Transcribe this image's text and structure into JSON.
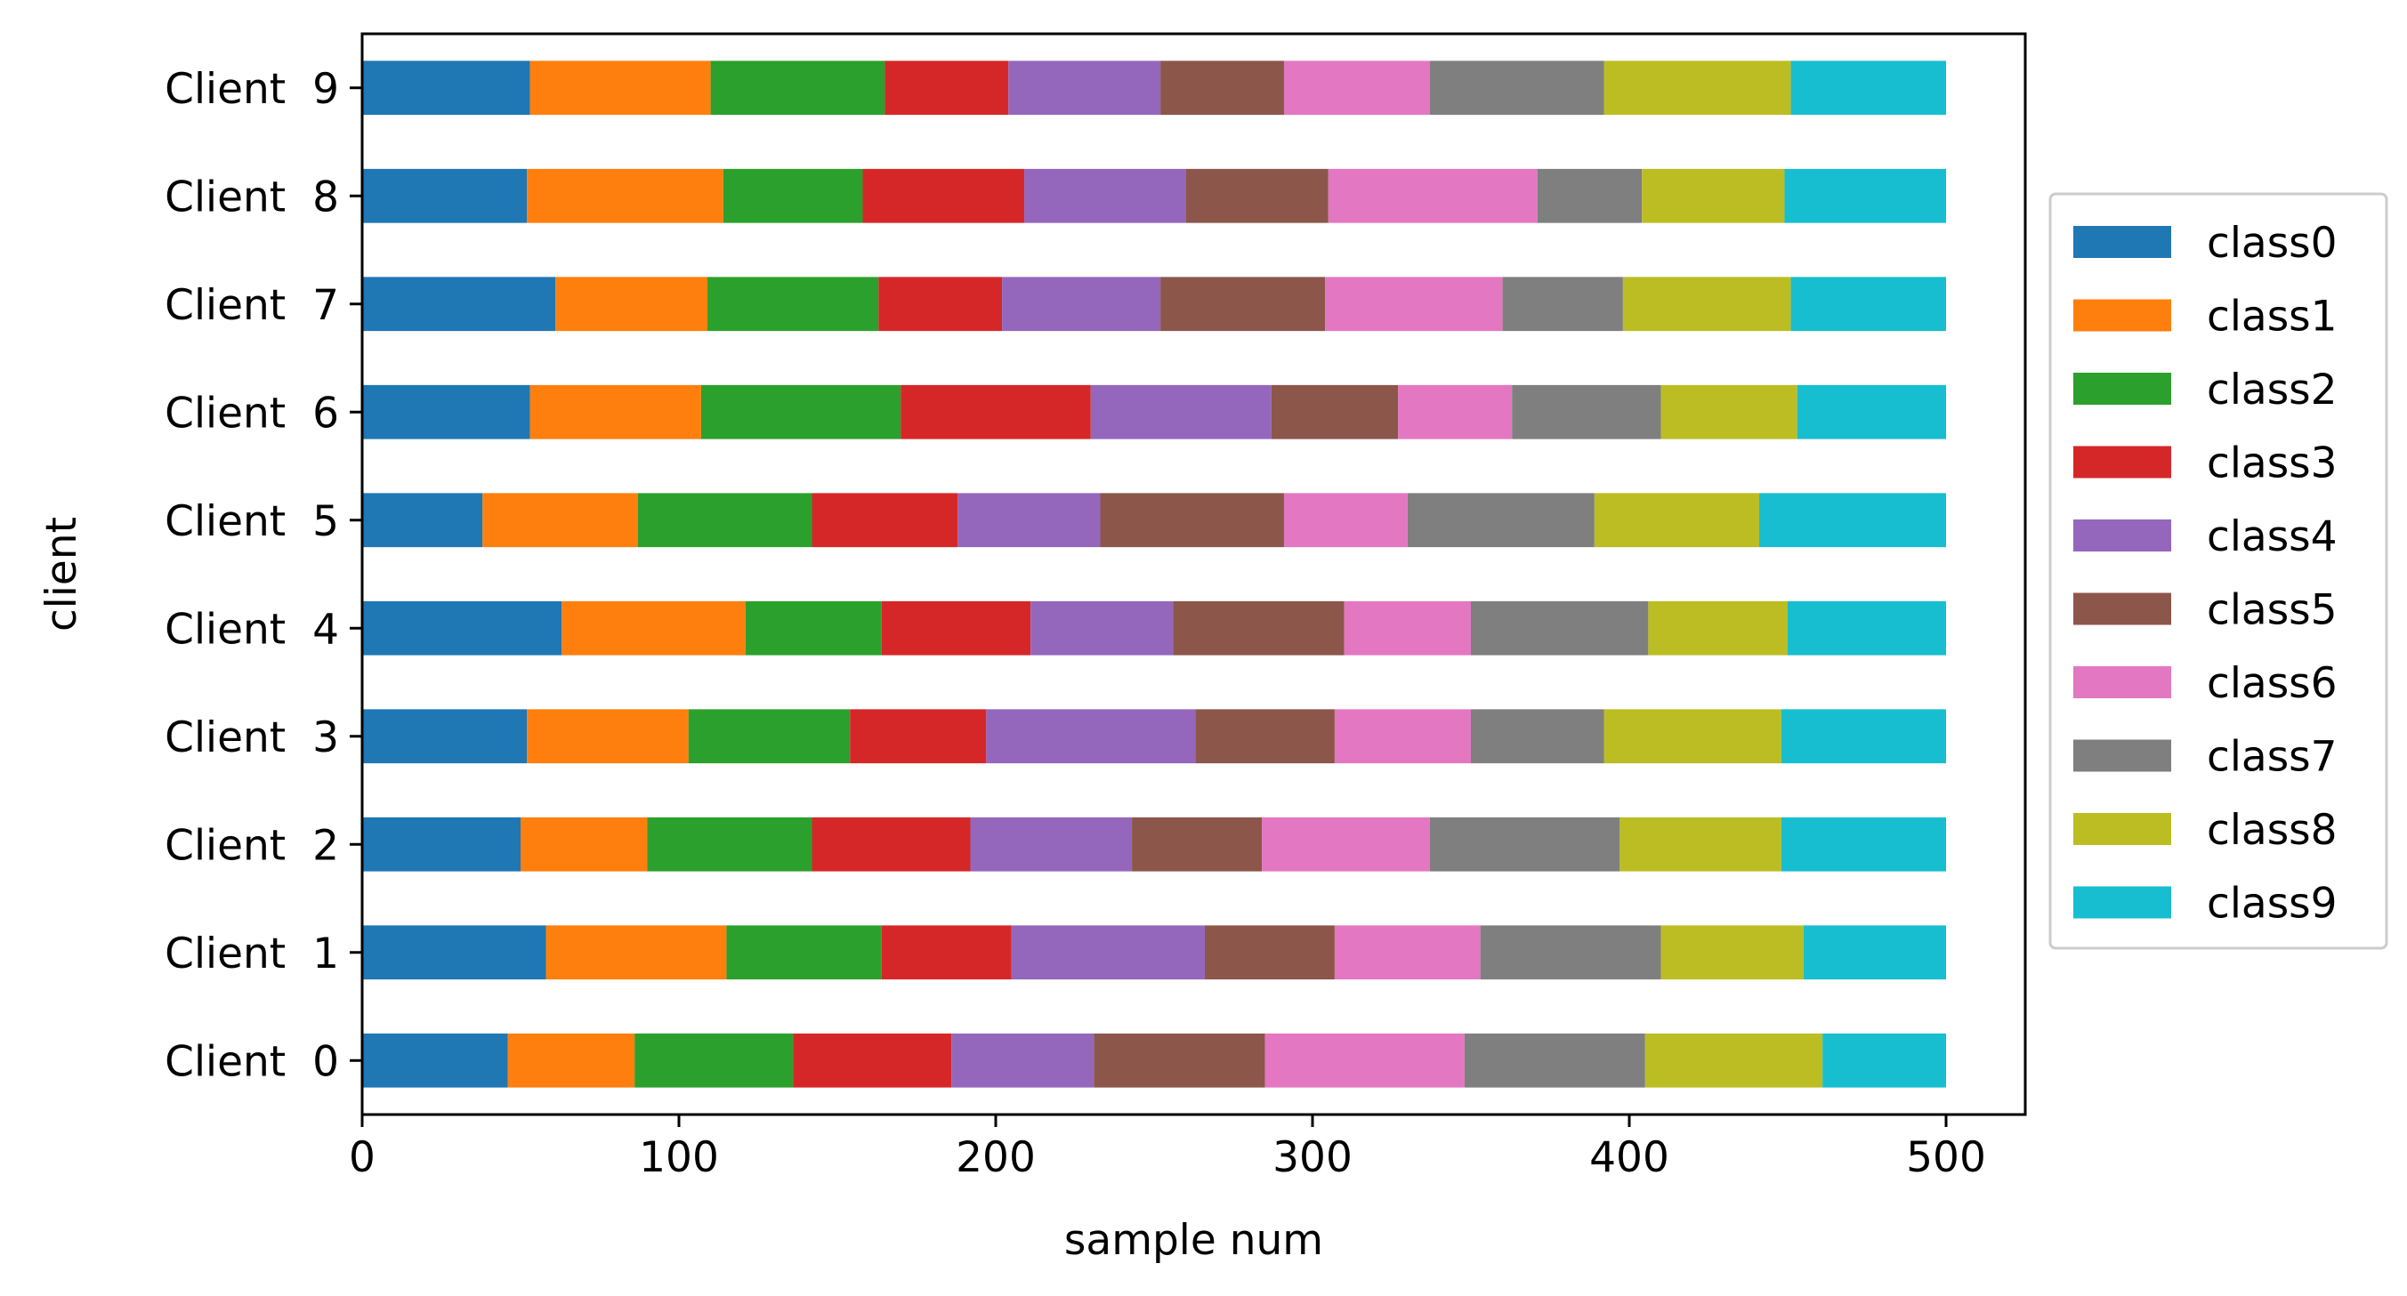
{
  "chart_data": {
    "type": "bar",
    "orientation": "horizontal",
    "stacked": true,
    "title": "",
    "xlabel": "sample num",
    "ylabel": "client",
    "xlim": [
      0,
      525
    ],
    "xticks": [
      0,
      100,
      200,
      300,
      400,
      500
    ],
    "grid": false,
    "legend_position": "right",
    "categories": [
      "Client  0",
      "Client  1",
      "Client  2",
      "Client  3",
      "Client  4",
      "Client  5",
      "Client  6",
      "Client  7",
      "Client  8",
      "Client  9"
    ],
    "series": [
      {
        "name": "class0",
        "color": "#1f77b4",
        "values": [
          46,
          58,
          50,
          52,
          63,
          38,
          53,
          61,
          52,
          53
        ]
      },
      {
        "name": "class1",
        "color": "#ff7f0e",
        "values": [
          40,
          57,
          40,
          51,
          58,
          49,
          54,
          48,
          62,
          57
        ]
      },
      {
        "name": "class2",
        "color": "#2ca02c",
        "values": [
          50,
          49,
          52,
          51,
          43,
          55,
          63,
          54,
          44,
          55
        ]
      },
      {
        "name": "class3",
        "color": "#d62728",
        "values": [
          50,
          41,
          50,
          43,
          47,
          46,
          60,
          39,
          51,
          39
        ]
      },
      {
        "name": "class4",
        "color": "#9467bd",
        "values": [
          45,
          61,
          51,
          66,
          45,
          45,
          57,
          50,
          51,
          48
        ]
      },
      {
        "name": "class5",
        "color": "#8c564b",
        "values": [
          54,
          41,
          41,
          44,
          54,
          58,
          40,
          52,
          45,
          39
        ]
      },
      {
        "name": "class6",
        "color": "#e377c2",
        "values": [
          63,
          46,
          53,
          43,
          40,
          39,
          36,
          56,
          66,
          46
        ]
      },
      {
        "name": "class7",
        "color": "#7f7f7f",
        "values": [
          57,
          57,
          60,
          42,
          56,
          59,
          47,
          38,
          33,
          55
        ]
      },
      {
        "name": "class8",
        "color": "#bcbd22",
        "values": [
          56,
          45,
          51,
          56,
          44,
          52,
          43,
          53,
          45,
          59
        ]
      },
      {
        "name": "class9",
        "color": "#17becf",
        "values": [
          39,
          45,
          52,
          52,
          50,
          59,
          47,
          49,
          51,
          49
        ]
      }
    ]
  }
}
